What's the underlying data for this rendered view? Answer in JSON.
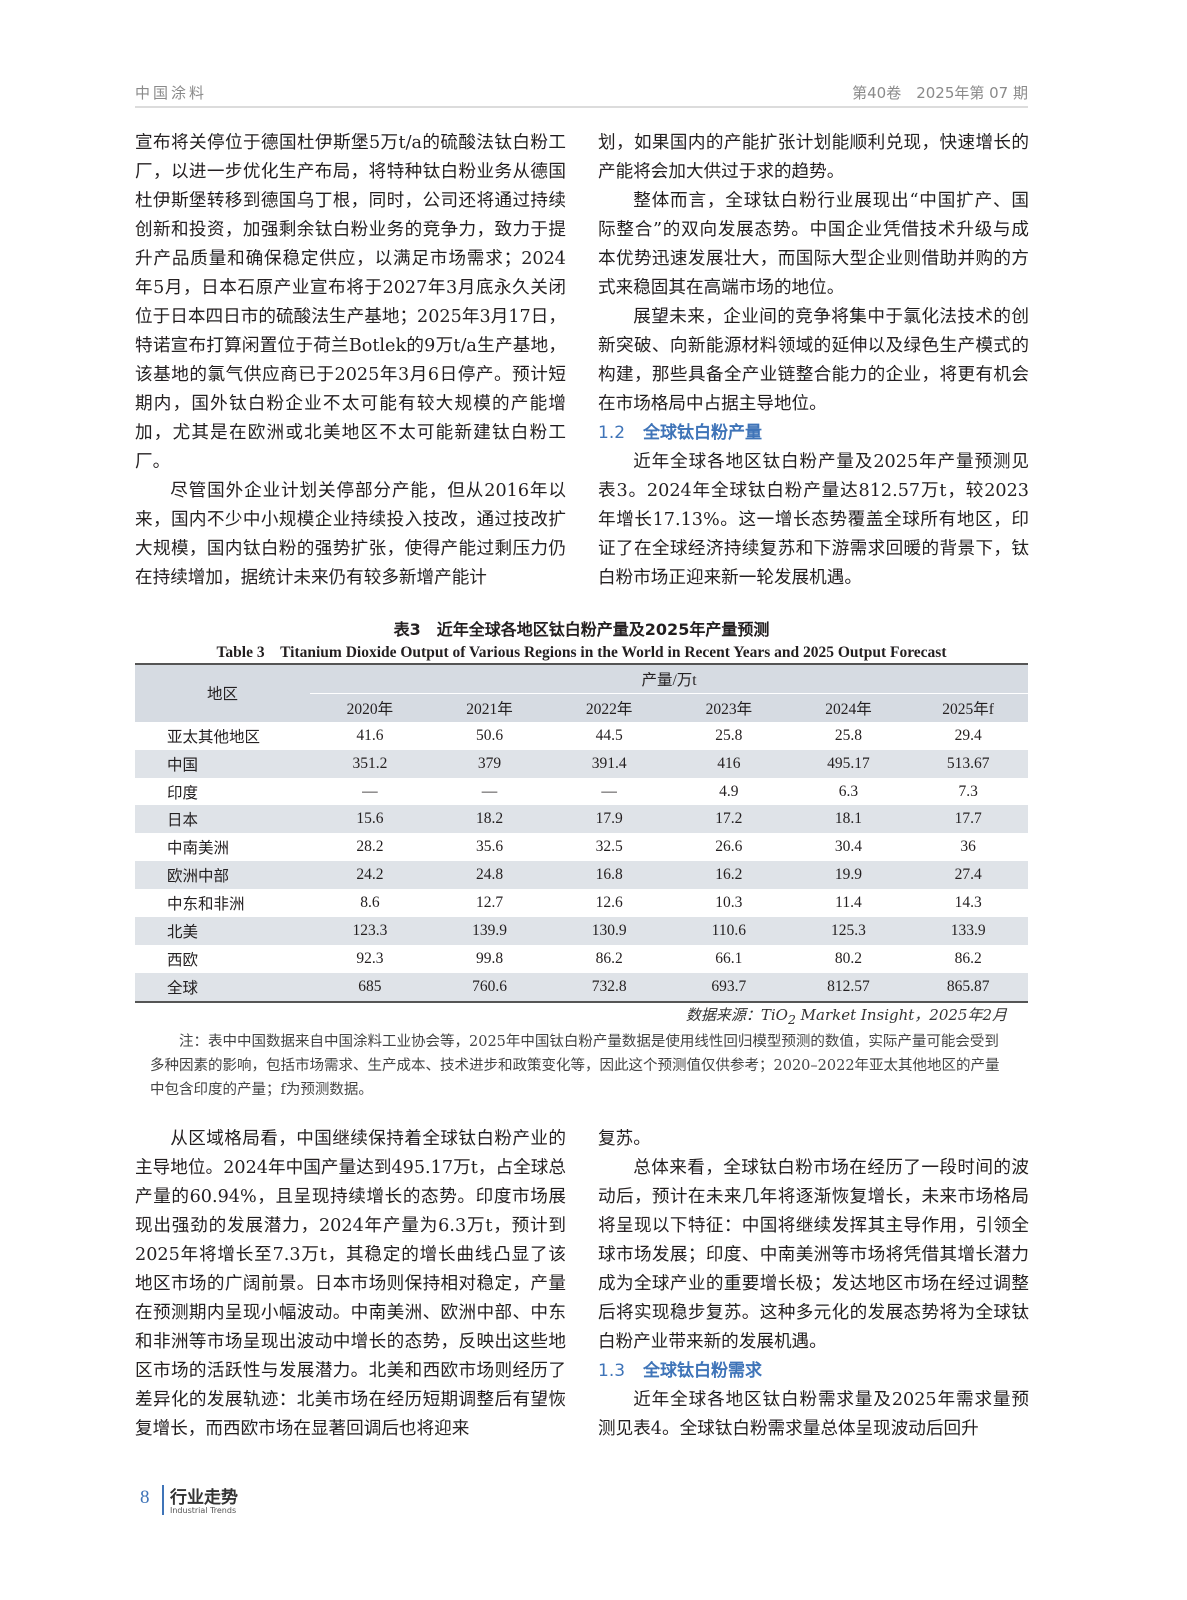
{
  "header": {
    "journal": "中国涂料",
    "issue": "第40卷　2025年第 07 期"
  },
  "top_left": [
    {
      "text": "宣布将关停位于德国杜伊斯堡5万t/a的硫酸法钛白粉工厂，以进一步优化生产布局，将特种钛白粉业务从德国杜伊斯堡转移到德国乌丁根，同时，公司还将通过持续创新和投资，加强剩余钛白粉业务的竞争力，致力于提升产品质量和确保稳定供应，以满足市场需求；2024年5月，日本石原产业宣布将于2027年3月底永久关闭位于日本四日市的硫酸法生产基地；2025年3月17日，特诺宣布打算闲置位于荷兰Botlek的9万t/a生产基地，该基地的氯气供应商已于2025年3月6日停产。预计短期内，国外钛白粉企业不太可能有较大规模的产能增加，尤其是在欧洲或北美地区不太可能新建钛白粉工厂。",
      "indent": false
    },
    {
      "text": "尽管国外企业计划关停部分产能，但从2016年以来，国内不少中小规模企业持续投入技改，通过技改扩大规模，国内钛白粉的强势扩张，使得产能过剩压力仍在持续增加，据统计未来仍有较多新增产能计",
      "indent": true
    }
  ],
  "top_right": {
    "p1": "划，如果国内的产能扩张计划能顺利兑现，快速增长的产能将会加大供过于求的趋势。",
    "p2": "整体而言，全球钛白粉行业展现出“中国扩产、国际整合”的双向发展态势。中国企业凭借技术升级与成本优势迅速发展壮大，而国际大型企业则借助并购的方式来稳固其在高端市场的地位。",
    "p3": "展望未来，企业间的竞争将集中于氯化法技术的创新突破、向新能源材料领域的延伸以及绿色生产模式的构建，那些具备全产业链整合能力的企业，将更有机会在市场格局中占据主导地位。",
    "sec_num": "1.2",
    "sec_title": "全球钛白粉产量",
    "p4": "近年全球各地区钛白粉产量及2025年产量预测见表3。2024年全球钛白粉产量达812.57万t，较2023年增长17.13%。这一增长态势覆盖全球所有地区，印证了在全球经济持续复苏和下游需求回暖的背景下，钛白粉市场正迎来新一轮发展机遇。"
  },
  "table": {
    "caption_cn": "表3　近年全球各地区钛白粉产量及2025年产量预测",
    "caption_en": "Table 3　Titanium Dioxide Output of Various Regions in the World in Recent Years and 2025 Output Forecast",
    "region_header": "地区",
    "group_header": "产量/万t",
    "years": [
      "2020年",
      "2021年",
      "2022年",
      "2023年",
      "2024年",
      "2025年f"
    ],
    "rows": [
      [
        "亚太其他地区",
        "41.6",
        "50.6",
        "44.5",
        "25.8",
        "25.8",
        "29.4"
      ],
      [
        "中国",
        "351.2",
        "379",
        "391.4",
        "416",
        "495.17",
        "513.67"
      ],
      [
        "印度",
        "—",
        "—",
        "—",
        "4.9",
        "6.3",
        "7.3"
      ],
      [
        "日本",
        "15.6",
        "18.2",
        "17.9",
        "17.2",
        "18.1",
        "17.7"
      ],
      [
        "中南美洲",
        "28.2",
        "35.6",
        "32.5",
        "26.6",
        "30.4",
        "36"
      ],
      [
        "欧洲中部",
        "24.2",
        "24.8",
        "16.8",
        "16.2",
        "19.9",
        "27.4"
      ],
      [
        "中东和非洲",
        "8.6",
        "12.7",
        "12.6",
        "10.3",
        "11.4",
        "14.3"
      ],
      [
        "北美",
        "123.3",
        "139.9",
        "130.9",
        "110.6",
        "125.3",
        "133.9"
      ],
      [
        "西欧",
        "92.3",
        "99.8",
        "86.2",
        "66.1",
        "80.2",
        "86.2"
      ],
      [
        "全球",
        "685",
        "760.6",
        "732.8",
        "693.7",
        "812.57",
        "865.87"
      ]
    ],
    "source_prefix": "数据来源：TiO",
    "source_sub": "2",
    "source_suffix": " Market Insight，2025年2月",
    "note": "注：表中中国数据来自中国涂料工业协会等，2025年中国钛白粉产量数据是使用线性回归模型预测的数值，实际产量可能会受到多种因素的影响，包括市场需求、生产成本、技术进步和政策变化等，因此这个预测值仅供参考；2020–2022年亚太其他地区的产量中包含印度的产量；f为预测数据。"
  },
  "bottom_left": "从区域格局看，中国继续保持着全球钛白粉产业的主导地位。2024年中国产量达到495.17万t，占全球总产量的60.94%，且呈现持续增长的态势。印度市场展现出强劲的发展潜力，2024年产量为6.3万t，预计到2025年将增长至7.3万t，其稳定的增长曲线凸显了该地区市场的广阔前景。日本市场则保持相对稳定，产量在预测期内呈现小幅波动。中南美洲、欧洲中部、中东和非洲等市场呈现出波动中增长的态势，反映出这些地区市场的活跃性与发展潜力。北美和西欧市场则经历了差异化的发展轨迹：北美市场在经历短期调整后有望恢复增长，而西欧市场在显著回调后也将迎来",
  "bottom_right": {
    "p1": "复苏。",
    "p2": "总体来看，全球钛白粉市场在经历了一段时间的波动后，预计在未来几年将逐渐恢复增长，未来市场格局将呈现以下特征：中国将继续发挥其主导作用，引领全球市场发展；印度、中南美洲等市场将凭借其增长潜力成为全球产业的重要增长极；发达地区市场在经过调整后将实现稳步复苏。这种多元化的发展态势将为全球钛白粉产业带来新的发展机遇。",
    "sec_num": "1.3",
    "sec_title": "全球钛白粉需求",
    "p3": "近年全球各地区钛白粉需求量及2025年需求量预测见表4。全球钛白粉需求量总体呈现波动后回升"
  },
  "footer": {
    "page": "8",
    "section_cn": "行业走势",
    "section_en": "Industrial Trends"
  },
  "colors": {
    "accent": "#3f74b8",
    "table_header": "#d6dbe2",
    "table_stripe": "#dfe3e8"
  }
}
